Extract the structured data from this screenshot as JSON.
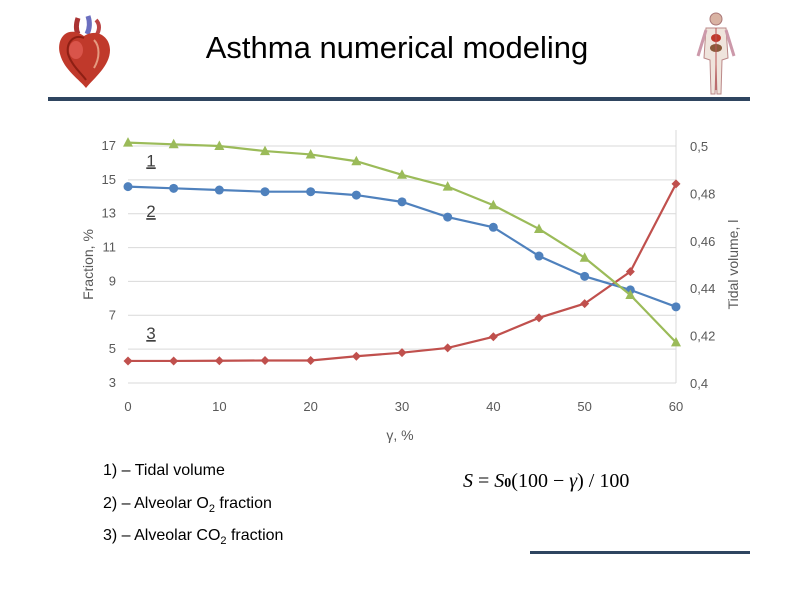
{
  "header": {
    "title": "Asthma numerical modeling"
  },
  "logos": {
    "left": "heart-icon",
    "right": "anatomy-figure-icon"
  },
  "legend_text": [
    {
      "prefix": "1) – Tidal volume",
      "sub": "",
      "suffix": ""
    },
    {
      "prefix": "2) – Alveolar O",
      "sub": "2",
      "suffix": " fraction"
    },
    {
      "prefix": "3) – Alveolar CO",
      "sub": "2",
      "suffix": " fraction"
    }
  ],
  "formula": {
    "lhs": "S",
    "eq": " = ",
    "s": "S",
    "s_sub": "0",
    "open": "(100 − ",
    "gamma": "γ",
    "close": ") / 100"
  },
  "chart_data": {
    "type": "line",
    "x": [
      0,
      5,
      10,
      15,
      20,
      25,
      30,
      35,
      40,
      45,
      50,
      55,
      60
    ],
    "xlabel": "γ, %",
    "ylabel": "Fraction, %",
    "y2label": "Tidal volume, l",
    "xlim": [
      0,
      60
    ],
    "ylim": [
      3,
      17
    ],
    "y2lim": [
      0.4,
      0.5
    ],
    "x_ticks": [
      "0",
      "10",
      "20",
      "30",
      "40",
      "50",
      "60"
    ],
    "y_ticks": [
      "3",
      "5",
      "7",
      "9",
      "11",
      "13",
      "15",
      "17"
    ],
    "y2_ticks": [
      "0,4",
      "0,42",
      "0,44",
      "0,46",
      "0,48",
      "0,5"
    ],
    "grid": true,
    "series": [
      {
        "name": "1",
        "axis": "right",
        "marker": "diamond",
        "color": "#c0504d",
        "values": [
          0.4093,
          0.4093,
          0.4094,
          0.4095,
          0.4095,
          0.4113,
          0.4128,
          0.4148,
          0.4195,
          0.4275,
          0.4335,
          0.447,
          0.484
        ]
      },
      {
        "name": "2",
        "axis": "left",
        "marker": "circle",
        "color": "#4f81bd",
        "values": [
          14.6,
          14.5,
          14.4,
          14.3,
          14.3,
          14.1,
          13.7,
          12.8,
          12.2,
          10.5,
          9.3,
          8.5,
          7.5
        ]
      },
      {
        "name": "3",
        "axis": "left",
        "marker": "triangle",
        "color": "#9bbb59",
        "values": [
          17.2,
          17.1,
          17.0,
          16.7,
          16.5,
          16.1,
          15.3,
          14.6,
          13.5,
          12.1,
          10.4,
          8.2,
          5.4
        ]
      }
    ],
    "annotations": [
      {
        "text": "1",
        "x": 2,
        "y": 15.8
      },
      {
        "text": "2",
        "x": 2,
        "y": 12.8
      },
      {
        "text": "3",
        "x": 2,
        "y": 5.6
      }
    ]
  }
}
